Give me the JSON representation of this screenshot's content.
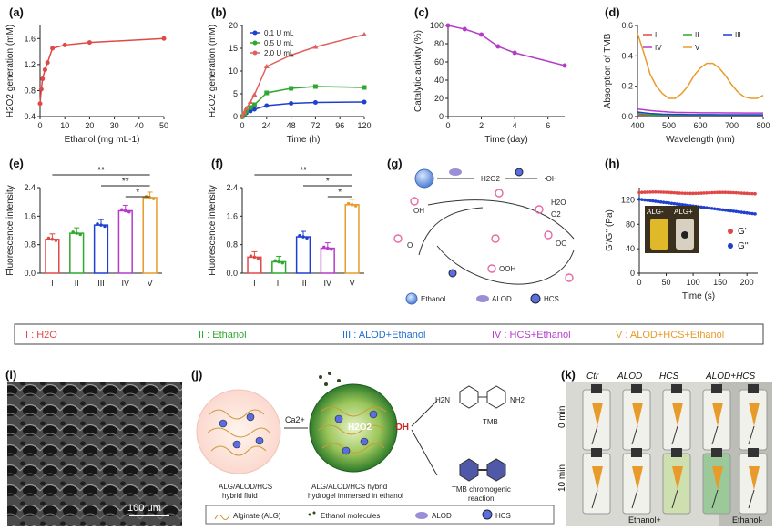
{
  "panel_labels": {
    "a": "(a)",
    "b": "(b)",
    "c": "(c)",
    "d": "(d)",
    "e": "(e)",
    "f": "(f)",
    "g": "(g)",
    "h": "(h)",
    "i": "(i)",
    "j": "(j)",
    "k": "(k)"
  },
  "chart_data": [
    {
      "id": "a",
      "type": "line",
      "ylabel": "H2O2 generation (mM)",
      "ylabel_sub": "H2O2 generation (mM)",
      "xlabel": "Ethanol (mg mL-1)",
      "xlim": [
        0,
        50
      ],
      "ylim": [
        0.4,
        1.8
      ],
      "xticks": [
        "0",
        "10",
        "20",
        "30",
        "40",
        "50"
      ],
      "yticks": [
        "0.4",
        "0.8",
        "1.2",
        "1.6"
      ],
      "x": [
        0,
        0.5,
        1,
        2,
        3,
        5,
        10,
        20,
        50
      ],
      "values": [
        0.6,
        0.82,
        0.98,
        1.12,
        1.23,
        1.45,
        1.5,
        1.54,
        1.6
      ],
      "color": "#e04848"
    },
    {
      "id": "b",
      "type": "line",
      "ylabel": "H2O2 generation (mM)",
      "xlabel": "Time (h)",
      "xlim": [
        0,
        120
      ],
      "ylim": [
        0,
        20
      ],
      "xticks": [
        "0",
        "24",
        "48",
        "72",
        "96",
        "120"
      ],
      "yticks": [
        "0",
        "5",
        "10",
        "15",
        "20"
      ],
      "x": [
        0,
        2,
        4,
        8,
        12,
        24,
        48,
        72,
        120
      ],
      "series": [
        {
          "name": "0.1 U mL-1",
          "color": "#1f3fcf",
          "values": [
            0,
            0.4,
            0.8,
            1.2,
            1.6,
            2.4,
            2.9,
            3.1,
            3.2
          ]
        },
        {
          "name": "0.5 U mL-1",
          "color": "#2ea82e",
          "values": [
            0,
            0.6,
            1.2,
            2,
            2.6,
            5.2,
            6.2,
            6.6,
            6.4
          ]
        },
        {
          "name": "2.0 U mL-1",
          "color": "#e06060",
          "values": [
            0,
            0.9,
            1.8,
            3.2,
            4.8,
            11,
            13.5,
            15.3,
            18
          ]
        }
      ],
      "legend": [
        "0.1 U mL",
        "0.5 U mL",
        "2.0 U mL"
      ]
    },
    {
      "id": "c",
      "type": "line",
      "ylabel": "Catalytic activity (%)",
      "xlabel": "Time (day)",
      "xlim": [
        0,
        7
      ],
      "ylim": [
        0,
        100
      ],
      "xticks": [
        "0",
        "2",
        "4",
        "6"
      ],
      "yticks": [
        "0",
        "20",
        "40",
        "60",
        "80",
        "100"
      ],
      "x": [
        0,
        1,
        2,
        3,
        4,
        7
      ],
      "values": [
        100,
        96,
        90,
        77,
        70,
        56
      ],
      "color": "#b43cc9"
    },
    {
      "id": "d",
      "type": "line",
      "ylabel": "Absorption of TMB",
      "xlabel": "Wavelength (nm)",
      "xlim": [
        400,
        800
      ],
      "ylim": [
        0,
        0.6
      ],
      "xticks": [
        "400",
        "500",
        "600",
        "700",
        "800"
      ],
      "yticks": [
        "0.0",
        "0.2",
        "0.4",
        "0.6"
      ],
      "x": [
        400,
        420,
        440,
        460,
        480,
        500,
        520,
        540,
        560,
        580,
        600,
        620,
        640,
        660,
        680,
        700,
        720,
        740,
        760,
        780,
        800
      ],
      "series": [
        {
          "name": "I",
          "color": "#e04848",
          "values": [
            0.01,
            0.01,
            0.01,
            0.01,
            0.01,
            0.01,
            0.01,
            0.01,
            0.01,
            0.01,
            0.01,
            0.01,
            0.01,
            0.01,
            0.01,
            0.01,
            0.01,
            0.01,
            0.01,
            0.01,
            0.01
          ]
        },
        {
          "name": "II",
          "color": "#2ea82e",
          "values": [
            0.02,
            0.015,
            0.012,
            0.01,
            0.01,
            0.01,
            0.01,
            0.01,
            0.01,
            0.01,
            0.01,
            0.01,
            0.01,
            0.01,
            0.01,
            0.01,
            0.01,
            0.01,
            0.01,
            0.01,
            0.01
          ]
        },
        {
          "name": "III",
          "color": "#1f3fcf",
          "values": [
            0.03,
            0.025,
            0.02,
            0.018,
            0.016,
            0.015,
            0.014,
            0.014,
            0.013,
            0.013,
            0.013,
            0.013,
            0.013,
            0.012,
            0.012,
            0.012,
            0.012,
            0.012,
            0.012,
            0.012,
            0.012
          ]
        },
        {
          "name": "IV",
          "color": "#b43cc9",
          "values": [
            0.05,
            0.045,
            0.04,
            0.036,
            0.033,
            0.03,
            0.028,
            0.027,
            0.026,
            0.026,
            0.025,
            0.025,
            0.025,
            0.025,
            0.024,
            0.024,
            0.024,
            0.023,
            0.023,
            0.023,
            0.023
          ]
        },
        {
          "name": "V",
          "color": "#e89a2a",
          "values": [
            0.55,
            0.42,
            0.28,
            0.2,
            0.15,
            0.12,
            0.12,
            0.15,
            0.2,
            0.27,
            0.32,
            0.35,
            0.35,
            0.32,
            0.27,
            0.21,
            0.16,
            0.13,
            0.12,
            0.12,
            0.14
          ]
        }
      ],
      "legend": [
        "I",
        "II",
        "III",
        "IV",
        "V"
      ]
    },
    {
      "id": "e",
      "type": "bar",
      "ylabel": "Fluorescence intensity",
      "ylim": [
        0,
        2.4
      ],
      "yticks": [
        "0.0",
        "0.8",
        "1.6",
        "2.4"
      ],
      "categories": [
        "I",
        "II",
        "III",
        "IV",
        "V"
      ],
      "values": [
        0.95,
        1.12,
        1.35,
        1.75,
        2.12
      ],
      "colors": [
        "#e04848",
        "#2ea82e",
        "#1f3fcf",
        "#b43cc9",
        "#e89a2a"
      ],
      "significance": [
        "**",
        "**",
        "*"
      ]
    },
    {
      "id": "f",
      "type": "bar",
      "ylabel": "Fluorescence intensity",
      "ylim": [
        0,
        2.4
      ],
      "yticks": [
        "0.0",
        "0.8",
        "1.6",
        "2.4"
      ],
      "categories": [
        "I",
        "II",
        "III",
        "IV",
        "V"
      ],
      "values": [
        0.45,
        0.32,
        1.02,
        0.7,
        1.92
      ],
      "colors": [
        "#e04848",
        "#2ea82e",
        "#1f3fcf",
        "#b43cc9",
        "#e89a2a"
      ],
      "significance": [
        "**",
        "*",
        "*"
      ]
    },
    {
      "id": "h",
      "type": "scatter",
      "ylabel": "G'/G'' (Pa)",
      "xlabel": "Time (s)",
      "xlim": [
        0,
        220
      ],
      "ylim": [
        0,
        140
      ],
      "xticks": [
        "0",
        "50",
        "100",
        "150",
        "200"
      ],
      "yticks": [
        "0",
        "40",
        "80",
        "120"
      ],
      "series": [
        {
          "name": "G'",
          "color": "#e04848",
          "start": 132,
          "end": 131
        },
        {
          "name": "G''",
          "color": "#1f3fcf",
          "start": 121,
          "end": 97
        }
      ],
      "legend": [
        "G'",
        "G''"
      ],
      "inset_labels": [
        "ALG-",
        "ALG+"
      ]
    }
  ],
  "legend_box": {
    "items": [
      {
        "text": "I : H2O",
        "color": "#e04848"
      },
      {
        "text": "II : Ethanol",
        "color": "#2ea82e"
      },
      {
        "text": "III : ALOD+Ethanol",
        "color": "#1f6fd0"
      },
      {
        "text": "IV : HCS+Ethanol",
        "color": "#b43cc9"
      },
      {
        "text": "V : ALOD+HCS+Ethanol",
        "color": "#e89a2a"
      }
    ]
  },
  "scheme_g": {
    "h2o2": "H2O2",
    "oh": "·OH",
    "h2o": "H2O",
    "o2": "O2",
    "oo": "OO",
    "ooh": "OOH",
    "o": "O",
    "oh2": "OH",
    "legend": [
      "Ethanol",
      "ALOD",
      "HCS"
    ]
  },
  "panel_i": {
    "scale": "100 μm"
  },
  "panel_j": {
    "ca": "Ca2+",
    "h2o2": "H2O2",
    "oh": "OH",
    "tmb": "TMB",
    "label1": "ALG/ALOD/HCS",
    "label1b": "hybrid fluid",
    "label2": "ALG/ALOD/HCS hybrid",
    "label2b": "hydrogel immersed in ethanol",
    "label3": "TMB chromogenic",
    "label3b": "reaction",
    "nh2": "NH2",
    "h2n": "H2N",
    "legend": [
      "Alginate (ALG)",
      "Ethanol molecules",
      "ALOD",
      "HCS"
    ]
  },
  "panel_k": {
    "columns": [
      "Ctr",
      "ALOD",
      "HCS",
      "ALOD+HCS"
    ],
    "rows": [
      "0 min",
      "10 min"
    ],
    "bottom_left": "Ethanol+",
    "bottom_right": "Ethanol-"
  }
}
